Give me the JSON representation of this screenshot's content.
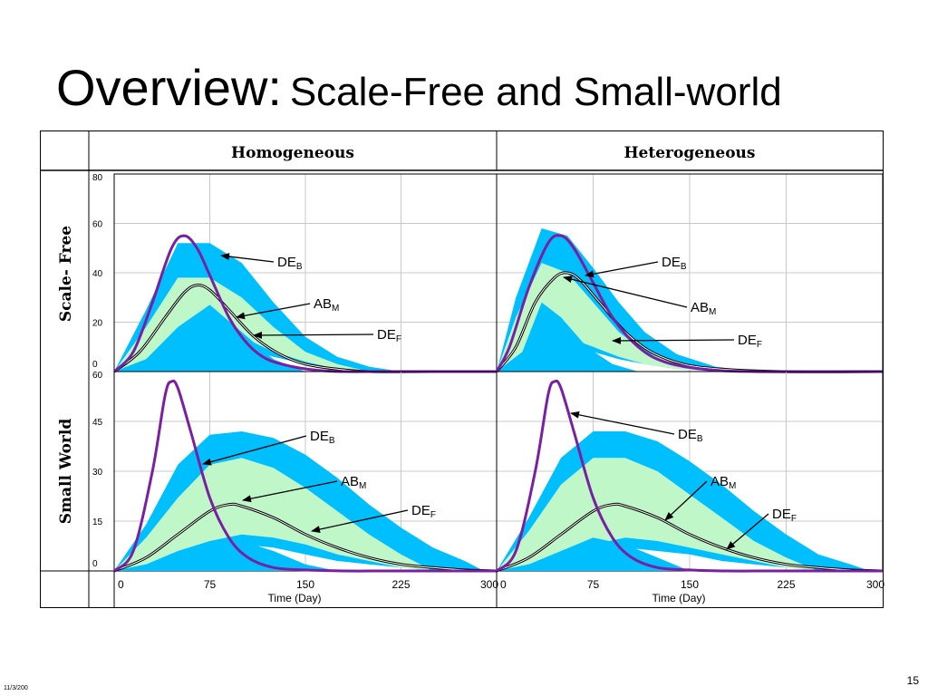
{
  "slide": {
    "title_main": "Overview:",
    "title_sub": "Scale-Free and Small-world",
    "page_number": "15",
    "date_stamp": "11/3/200"
  },
  "table": {
    "column_headers": [
      "Homogeneous",
      "Heterogeneous"
    ],
    "row_headers": [
      "Scale- Free",
      "Small World"
    ]
  },
  "colors": {
    "outer_band": "#00bfff",
    "inner_band": "#bff7c9",
    "core": "#00bfff",
    "deb_curve": "#7a1fa2",
    "abm_curve": "#808080",
    "grid": "#c8c8c8"
  },
  "chart_data": [
    {
      "type": "area",
      "row": "Scale- Free",
      "column": "Homogeneous",
      "xlabel": "Time (Day)",
      "xlim": [
        0,
        300
      ],
      "ylim": [
        0,
        80
      ],
      "yticks": [
        0,
        20,
        40,
        60,
        80
      ],
      "xticks": [
        0,
        75,
        150,
        225,
        300
      ],
      "band_outer": {
        "x": [
          0,
          25,
          50,
          75,
          100,
          125,
          150,
          175,
          200,
          225,
          250
        ],
        "low": [
          0,
          2,
          8,
          12,
          10,
          6,
          3,
          1,
          0,
          0,
          0
        ],
        "high": [
          0,
          25,
          52,
          52,
          44,
          28,
          14,
          6,
          2,
          0,
          0
        ]
      },
      "band_inner": {
        "x": [
          0,
          25,
          50,
          75,
          100,
          125,
          150,
          175,
          200
        ],
        "low": [
          0,
          5,
          12,
          18,
          14,
          8,
          4,
          1,
          0
        ],
        "high": [
          0,
          18,
          38,
          38,
          30,
          18,
          8,
          3,
          0
        ]
      },
      "core": {
        "x": [
          0,
          25,
          50,
          75,
          100,
          125,
          150
        ],
        "y": [
          0,
          5,
          18,
          27,
          16,
          5,
          0
        ]
      },
      "series": [
        {
          "name": "DE",
          "subscript": "B",
          "x": [
            0,
            15,
            30,
            45,
            55,
            65,
            75,
            90,
            105,
            120,
            140,
            160,
            180,
            210,
            250,
            300
          ],
          "y": [
            0,
            8,
            28,
            50,
            55,
            50,
            39,
            22,
            11,
            5,
            2,
            0.5,
            0,
            0,
            0,
            0
          ]
        },
        {
          "name": "AB",
          "subscript": "M",
          "x": [
            0,
            20,
            40,
            55,
            65,
            75,
            90,
            110,
            130,
            150,
            175,
            200,
            250,
            300
          ],
          "y": [
            0,
            8,
            22,
            32,
            35,
            33,
            25,
            14,
            7,
            3,
            1,
            0,
            0,
            0
          ]
        }
      ],
      "annotations": [
        {
          "name": "DE",
          "subscript": "B",
          "pointing_to": "DE_B"
        },
        {
          "name": "AB",
          "subscript": "M",
          "pointing_to": "AB_M"
        },
        {
          "name": "DE",
          "subscript": "F",
          "pointing_to": "DE_F"
        }
      ]
    },
    {
      "type": "area",
      "row": "Scale- Free",
      "column": "Heterogeneous",
      "xlabel": "Time (Day)",
      "xlim": [
        0,
        300
      ],
      "ylim": [
        0,
        80
      ],
      "xticks": [
        0,
        75,
        150,
        225,
        300
      ],
      "band_outer": {
        "x": [
          0,
          15,
          35,
          55,
          75,
          95,
          115,
          140,
          170,
          200,
          230
        ],
        "low": [
          0,
          3,
          9,
          10,
          8,
          5,
          3,
          1,
          0,
          0,
          0
        ],
        "high": [
          0,
          30,
          58,
          55,
          42,
          28,
          16,
          7,
          2,
          0,
          0
        ]
      },
      "band_inner": {
        "x": [
          0,
          15,
          35,
          55,
          75,
          95,
          115,
          140,
          170
        ],
        "low": [
          0,
          5,
          12,
          14,
          10,
          6,
          3,
          1,
          0
        ],
        "high": [
          0,
          22,
          44,
          40,
          28,
          16,
          8,
          3,
          0
        ]
      },
      "core": {
        "x": [
          0,
          20,
          35,
          50,
          70,
          90,
          110
        ],
        "y": [
          0,
          8,
          28,
          22,
          10,
          3,
          0
        ]
      },
      "series": [
        {
          "name": "DE",
          "subscript": "B",
          "x": [
            0,
            10,
            25,
            40,
            50,
            60,
            75,
            90,
            110,
            130,
            160,
            200,
            300
          ],
          "y": [
            0,
            10,
            34,
            52,
            55,
            50,
            36,
            22,
            10,
            4,
            1,
            0,
            0
          ]
        },
        {
          "name": "AB",
          "subscript": "M",
          "x": [
            0,
            15,
            30,
            45,
            55,
            65,
            80,
            100,
            120,
            145,
            175,
            220,
            300
          ],
          "y": [
            0,
            10,
            28,
            38,
            40,
            37,
            28,
            16,
            8,
            3,
            1,
            0,
            0
          ]
        }
      ],
      "annotations": [
        {
          "name": "DE",
          "subscript": "B",
          "pointing_to": "DE_B"
        },
        {
          "name": "AB",
          "subscript": "M",
          "pointing_to": "AB_M"
        },
        {
          "name": "DE",
          "subscript": "F",
          "pointing_to": "DE_F"
        }
      ]
    },
    {
      "type": "area",
      "row": "Small World",
      "column": "Homogeneous",
      "xlabel": "Time (Day)",
      "xlim": [
        0,
        300
      ],
      "ylim": [
        0,
        60
      ],
      "yticks": [
        0,
        15,
        30,
        45,
        60
      ],
      "xticks": [
        0,
        75,
        150,
        225,
        300
      ],
      "band_outer": {
        "x": [
          0,
          25,
          50,
          75,
          100,
          125,
          150,
          175,
          200,
          225,
          250,
          275,
          290
        ],
        "low": [
          0,
          1,
          3,
          6,
          8,
          7,
          5,
          3,
          2,
          1,
          0,
          0,
          0
        ],
        "high": [
          0,
          14,
          32,
          41,
          42,
          40,
          35,
          28,
          20,
          13,
          7,
          3,
          0
        ]
      },
      "band_inner": {
        "x": [
          0,
          25,
          50,
          75,
          100,
          125,
          150,
          175,
          200,
          225,
          250
        ],
        "low": [
          0,
          2,
          5,
          9,
          11,
          10,
          8,
          5,
          3,
          1,
          0
        ],
        "high": [
          0,
          10,
          22,
          32,
          34,
          31,
          25,
          18,
          11,
          5,
          0
        ]
      },
      "core": {
        "x": [
          0,
          25,
          50,
          75,
          100,
          125,
          150,
          175
        ],
        "y": [
          0,
          2,
          6,
          9,
          9,
          6,
          2,
          0
        ]
      },
      "series": [
        {
          "name": "DE",
          "subscript": "B",
          "x": [
            0,
            15,
            30,
            40,
            45,
            50,
            60,
            75,
            90,
            105,
            125,
            150,
            180,
            220,
            300
          ],
          "y": [
            0,
            6,
            30,
            53,
            57,
            55,
            42,
            22,
            10,
            4,
            1,
            0.3,
            0,
            0,
            0
          ]
        },
        {
          "name": "AB",
          "subscript": "M",
          "x": [
            0,
            25,
            50,
            75,
            90,
            100,
            125,
            150,
            175,
            200,
            225,
            250,
            275,
            300
          ],
          "y": [
            0,
            4,
            11,
            18,
            20,
            19.5,
            16,
            11,
            7,
            4,
            2,
            1,
            0.3,
            0
          ]
        }
      ],
      "annotations": [
        {
          "name": "DE",
          "subscript": "B",
          "pointing_to": "DE_B"
        },
        {
          "name": "AB",
          "subscript": "M",
          "pointing_to": "AB_M"
        },
        {
          "name": "DE",
          "subscript": "F",
          "pointing_to": "DE_F"
        }
      ]
    },
    {
      "type": "area",
      "row": "Small World",
      "column": "Heterogeneous",
      "xlabel": "Time (Day)",
      "xlim": [
        0,
        300
      ],
      "ylim": [
        0,
        60
      ],
      "xticks": [
        0,
        75,
        150,
        225,
        300
      ],
      "band_outer": {
        "x": [
          0,
          25,
          50,
          75,
          100,
          125,
          150,
          175,
          200,
          225,
          250,
          275,
          290
        ],
        "low": [
          0,
          1,
          3,
          5,
          7,
          6,
          5,
          3,
          2,
          1,
          0,
          0,
          0
        ],
        "high": [
          0,
          16,
          34,
          42,
          42,
          39,
          33,
          26,
          18,
          11,
          5,
          2,
          0
        ]
      },
      "band_inner": {
        "x": [
          0,
          25,
          50,
          75,
          100,
          125,
          150,
          175,
          200,
          225,
          250
        ],
        "low": [
          0,
          2,
          5,
          8,
          10,
          9,
          7,
          5,
          3,
          1,
          0
        ],
        "high": [
          0,
          12,
          26,
          34,
          34,
          30,
          23,
          16,
          9,
          4,
          0
        ]
      },
      "core": {
        "x": [
          0,
          25,
          50,
          75,
          100,
          125,
          150
        ],
        "y": [
          0,
          2,
          6,
          10,
          8,
          4,
          0
        ]
      },
      "series": [
        {
          "name": "DE",
          "subscript": "B",
          "x": [
            0,
            15,
            30,
            40,
            45,
            50,
            60,
            75,
            90,
            105,
            125,
            150,
            180,
            220,
            300
          ],
          "y": [
            0,
            6,
            30,
            53,
            57,
            55,
            42,
            22,
            10,
            4,
            1,
            0.3,
            0,
            0,
            0
          ]
        },
        {
          "name": "AB",
          "subscript": "M",
          "x": [
            0,
            25,
            50,
            75,
            90,
            100,
            125,
            150,
            175,
            200,
            225,
            250,
            275,
            300
          ],
          "y": [
            0,
            4,
            11,
            18,
            20,
            19.5,
            16,
            11,
            7,
            4,
            2,
            1,
            0.3,
            0
          ]
        }
      ],
      "annotations": [
        {
          "name": "DE",
          "subscript": "B",
          "pointing_to": "DE_B"
        },
        {
          "name": "AB",
          "subscript": "M",
          "pointing_to": "AB_M"
        },
        {
          "name": "DE",
          "subscript": "F",
          "pointing_to": "DE_F"
        }
      ]
    }
  ]
}
